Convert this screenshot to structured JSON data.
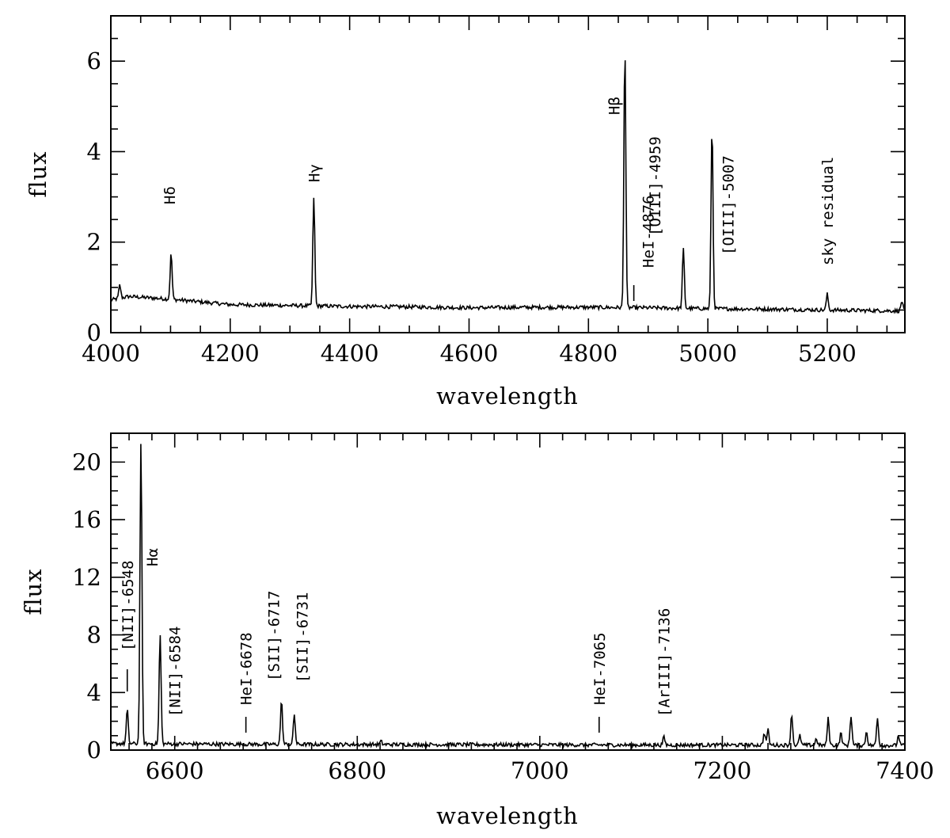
{
  "chart_data": [
    {
      "type": "line",
      "xlabel": "wavelength",
      "ylabel": "flux",
      "xlim": [
        4000,
        5330
      ],
      "ylim": [
        0,
        7
      ],
      "x_ticks": [
        4000,
        4200,
        4400,
        4600,
        4800,
        5000,
        5200
      ],
      "y_ticks": [
        0,
        2,
        4,
        6
      ],
      "continuum": {
        "x": [
          4000,
          4030,
          4100,
          4200,
          4300,
          4400,
          4500,
          4600,
          4700,
          4800,
          4900,
          5000,
          5100,
          5200,
          5330
        ],
        "y": [
          0.72,
          0.8,
          0.74,
          0.62,
          0.6,
          0.58,
          0.57,
          0.55,
          0.56,
          0.56,
          0.55,
          0.53,
          0.52,
          0.5,
          0.48
        ]
      },
      "emission_lines": [
        {
          "x": 4015,
          "peak": 1.05
        },
        {
          "x": 4101,
          "peak": 1.75
        },
        {
          "x": 4340,
          "peak": 3.0
        },
        {
          "x": 4861,
          "peak": 6.35
        },
        {
          "x": 4876,
          "peak": 0.55
        },
        {
          "x": 4959,
          "peak": 1.85
        },
        {
          "x": 5007,
          "peak": 4.6
        },
        {
          "x": 5200,
          "peak": 0.85
        },
        {
          "x": 5325,
          "peak": 0.7
        }
      ],
      "labels": [
        {
          "text": "Hδ",
          "x": 4101
        },
        {
          "text": "Hγ",
          "x": 4340
        },
        {
          "text": "Hβ",
          "x": 4861
        },
        {
          "text": "HeI-4876",
          "x": 4876
        },
        {
          "text": "[OIII]-4959",
          "x": 4959
        },
        {
          "text": "[OIII]-5007",
          "x": 5007
        },
        {
          "text": "sky residual",
          "x": 5200
        }
      ]
    },
    {
      "type": "line",
      "xlabel": "wavelength",
      "ylabel": "flux",
      "xlim": [
        6530,
        7400
      ],
      "ylim": [
        0,
        22
      ],
      "x_ticks": [
        6600,
        6800,
        7000,
        7200,
        7400
      ],
      "y_ticks": [
        0,
        4,
        8,
        12,
        16,
        20
      ],
      "continuum": {
        "x": [
          6530,
          6700,
          6900,
          7100,
          7240,
          7400
        ],
        "y": [
          0.45,
          0.4,
          0.38,
          0.35,
          0.35,
          0.32
        ]
      },
      "emission_lines": [
        {
          "x": 6548,
          "peak": 2.8
        },
        {
          "x": 6563,
          "peak": 21.5
        },
        {
          "x": 6584,
          "peak": 8.0
        },
        {
          "x": 6678,
          "peak": 0.35
        },
        {
          "x": 6717,
          "peak": 3.4
        },
        {
          "x": 6731,
          "peak": 2.5
        },
        {
          "x": 6826,
          "peak": 0.6
        },
        {
          "x": 7065,
          "peak": 0.35
        },
        {
          "x": 7136,
          "peak": 0.9
        },
        {
          "x": 7246,
          "peak": 1.2
        },
        {
          "x": 7250,
          "peak": 1.4
        },
        {
          "x": 7276,
          "peak": 2.5
        },
        {
          "x": 7285,
          "peak": 1.0
        },
        {
          "x": 7303,
          "peak": 0.8
        },
        {
          "x": 7316,
          "peak": 2.2
        },
        {
          "x": 7330,
          "peak": 1.2
        },
        {
          "x": 7341,
          "peak": 2.4
        },
        {
          "x": 7358,
          "peak": 1.3
        },
        {
          "x": 7370,
          "peak": 2.2
        },
        {
          "x": 7393,
          "peak": 1.0
        }
      ],
      "labels": [
        {
          "text": "[NII]-6548",
          "x": 6548
        },
        {
          "text": "Hα",
          "x": 6563
        },
        {
          "text": "[NII]-6584",
          "x": 6584
        },
        {
          "text": "HeI-6678",
          "x": 6678
        },
        {
          "text": "[SII]-6717",
          "x": 6717
        },
        {
          "text": "[SII]-6731",
          "x": 6731
        },
        {
          "text": "HeI-7065",
          "x": 7065
        },
        {
          "text": "[ArIII]-7136",
          "x": 7136
        }
      ]
    }
  ],
  "style": {
    "line_color": "#000000",
    "background": "#ffffff"
  }
}
